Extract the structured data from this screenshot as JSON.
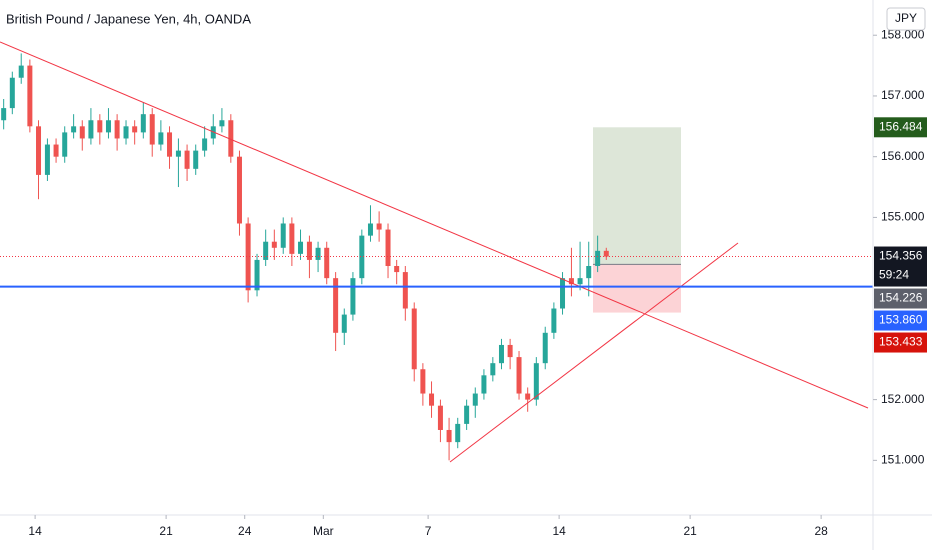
{
  "chart_data": {
    "type": "candlestick",
    "title": "British Pound / Japanese Yen, 4h, OANDA",
    "currency": "JPY",
    "xlim": [
      -1.34,
      31.98
    ],
    "ylim": [
      150.1,
      158.58
    ],
    "xticks": [
      {
        "value": 0,
        "label": "14"
      },
      {
        "value": 5,
        "label": "21"
      },
      {
        "value": 8,
        "label": "24"
      },
      {
        "value": 11,
        "label": "Mar"
      },
      {
        "value": 15,
        "label": "7"
      },
      {
        "value": 20,
        "label": "14"
      },
      {
        "value": 25,
        "label": "21"
      },
      {
        "value": 30,
        "label": "28"
      }
    ],
    "yticks": [
      {
        "value": 151,
        "label": "151.000"
      },
      {
        "value": 152,
        "label": "152.000"
      },
      {
        "value": 155,
        "label": "155.000"
      },
      {
        "value": 156,
        "label": "156.000"
      },
      {
        "value": 157,
        "label": "157.000"
      },
      {
        "value": 158,
        "label": "158.000"
      }
    ],
    "up_color": "#26a69a",
    "down_color": "#ef5350",
    "x": [
      -1.2,
      -0.87,
      -0.53,
      -0.2,
      0.13,
      0.47,
      0.8,
      1.13,
      1.47,
      1.8,
      2.13,
      2.47,
      2.8,
      3.13,
      3.47,
      3.8,
      4.13,
      4.47,
      4.8,
      5.13,
      5.47,
      5.8,
      6.13,
      6.47,
      6.8,
      7.13,
      7.47,
      7.8,
      8.13,
      8.47,
      8.8,
      9.13,
      9.47,
      9.8,
      10.13,
      10.47,
      10.8,
      11.13,
      11.47,
      11.8,
      12.13,
      12.47,
      12.8,
      13.13,
      13.47,
      13.8,
      14.13,
      14.47,
      14.8,
      15.13,
      15.47,
      15.8,
      16.13,
      16.47,
      16.8,
      17.13,
      17.47,
      17.8,
      18.13,
      18.47,
      18.8,
      19.13,
      19.47,
      19.8,
      20.13,
      20.47,
      20.8,
      21.13,
      21.47,
      21.8
    ],
    "ohlc": [
      [
        156.6,
        156.95,
        156.45,
        156.8
      ],
      [
        156.8,
        157.4,
        156.7,
        157.3
      ],
      [
        157.3,
        157.7,
        157.2,
        157.5
      ],
      [
        157.5,
        157.6,
        156.4,
        156.5
      ],
      [
        156.5,
        156.6,
        155.3,
        155.7
      ],
      [
        155.7,
        156.3,
        155.6,
        156.2
      ],
      [
        156.2,
        156.3,
        155.9,
        156.0
      ],
      [
        156.0,
        156.5,
        155.9,
        156.4
      ],
      [
        156.4,
        156.7,
        156.3,
        156.5
      ],
      [
        156.5,
        156.6,
        156.1,
        156.3
      ],
      [
        156.3,
        156.8,
        156.2,
        156.6
      ],
      [
        156.6,
        156.7,
        156.2,
        156.4
      ],
      [
        156.4,
        156.8,
        156.3,
        156.6
      ],
      [
        156.6,
        156.7,
        156.1,
        156.3
      ],
      [
        156.3,
        156.6,
        156.2,
        156.5
      ],
      [
        156.5,
        156.6,
        156.2,
        156.4
      ],
      [
        156.4,
        156.9,
        156.3,
        156.7
      ],
      [
        156.7,
        156.8,
        156.0,
        156.2
      ],
      [
        156.2,
        156.6,
        156.1,
        156.4
      ],
      [
        156.4,
        156.5,
        155.8,
        156.0
      ],
      [
        156.0,
        156.3,
        155.5,
        156.1
      ],
      [
        156.1,
        156.2,
        155.6,
        155.8
      ],
      [
        155.8,
        156.2,
        155.7,
        156.1
      ],
      [
        156.1,
        156.5,
        156.0,
        156.3
      ],
      [
        156.3,
        156.7,
        156.2,
        156.5
      ],
      [
        156.5,
        156.8,
        156.4,
        156.6
      ],
      [
        156.6,
        156.7,
        155.9,
        156.0
      ],
      [
        156.0,
        156.1,
        154.7,
        154.9
      ],
      [
        154.9,
        155.0,
        153.6,
        153.8
      ],
      [
        153.8,
        154.4,
        153.7,
        154.3
      ],
      [
        154.3,
        154.8,
        154.2,
        154.6
      ],
      [
        154.6,
        154.8,
        154.3,
        154.5
      ],
      [
        154.5,
        155.0,
        154.4,
        154.9
      ],
      [
        154.9,
        155.0,
        154.2,
        154.4
      ],
      [
        154.4,
        154.8,
        154.3,
        154.6
      ],
      [
        154.6,
        154.7,
        154.0,
        154.3
      ],
      [
        154.3,
        154.6,
        154.1,
        154.5
      ],
      [
        154.5,
        154.6,
        153.9,
        154.0
      ],
      [
        154.0,
        154.1,
        152.8,
        153.1
      ],
      [
        153.1,
        153.5,
        152.9,
        153.4
      ],
      [
        153.4,
        154.1,
        153.3,
        154.0
      ],
      [
        154.0,
        154.8,
        153.9,
        154.7
      ],
      [
        154.7,
        155.2,
        154.6,
        154.9
      ],
      [
        154.9,
        155.1,
        154.6,
        154.8
      ],
      [
        154.8,
        154.9,
        154.0,
        154.2
      ],
      [
        154.2,
        154.3,
        153.9,
        154.1
      ],
      [
        154.1,
        154.2,
        153.3,
        153.5
      ],
      [
        153.5,
        153.6,
        152.3,
        152.5
      ],
      [
        152.5,
        152.6,
        151.9,
        152.1
      ],
      [
        152.1,
        152.3,
        151.7,
        151.9
      ],
      [
        151.9,
        152.0,
        151.3,
        151.5
      ],
      [
        151.5,
        151.7,
        151.0,
        151.3
      ],
      [
        151.3,
        151.7,
        151.2,
        151.6
      ],
      [
        151.6,
        152.0,
        151.5,
        151.9
      ],
      [
        151.9,
        152.2,
        151.7,
        152.1
      ],
      [
        152.1,
        152.5,
        152.0,
        152.4
      ],
      [
        152.4,
        152.7,
        152.3,
        152.6
      ],
      [
        152.6,
        153.0,
        152.5,
        152.9
      ],
      [
        152.9,
        153.0,
        152.5,
        152.7
      ],
      [
        152.7,
        152.8,
        152.0,
        152.1
      ],
      [
        152.1,
        152.2,
        151.8,
        152.0
      ],
      [
        152.0,
        152.7,
        151.9,
        152.6
      ],
      [
        152.6,
        153.2,
        152.5,
        153.1
      ],
      [
        153.1,
        153.6,
        153.0,
        153.5
      ],
      [
        153.5,
        154.1,
        153.4,
        154.0
      ],
      [
        154.0,
        154.5,
        153.7,
        153.9
      ],
      [
        153.9,
        154.6,
        153.8,
        154.0
      ],
      [
        154.0,
        154.6,
        153.7,
        154.2
      ],
      [
        154.2,
        154.7,
        154.1,
        154.45
      ],
      [
        154.45,
        154.5,
        154.3,
        154.356
      ]
    ],
    "price_labels": [
      {
        "value": 156.484,
        "label": "156.484",
        "color": "#245c1c"
      },
      {
        "value": 154.356,
        "label": "154.356",
        "color": "#131722",
        "countdown": "59:24"
      },
      {
        "value": 154.226,
        "label": "154.226",
        "color": "#5d606b"
      },
      {
        "value": 153.86,
        "label": "153.860",
        "color": "#2962ff"
      },
      {
        "value": 153.433,
        "label": "153.433",
        "color": "#d6130b"
      }
    ]
  }
}
